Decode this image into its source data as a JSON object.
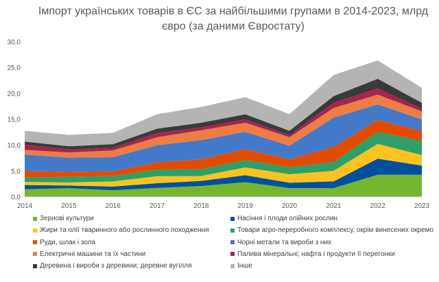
{
  "chart_data": {
    "type": "area",
    "stacked": true,
    "title": "Імпорт українських товарів в ЄС за найбільшими групами в 2014-2023, млрд євро (за даними Євростату)",
    "xlabel": "",
    "ylabel": "",
    "ylim": [
      0,
      30
    ],
    "yticks": [
      "0,0",
      "5,0",
      "10,0",
      "15,0",
      "20,0",
      "25,0",
      "30,0"
    ],
    "ytick_values": [
      0,
      5,
      10,
      15,
      20,
      25,
      30
    ],
    "categories": [
      "2014",
      "2015",
      "2016",
      "2017",
      "2018",
      "2019",
      "2020",
      "2021",
      "2022",
      "2023"
    ],
    "grid": false,
    "legend_position": "bottom",
    "series": [
      {
        "name": "Зернові культури",
        "color": "#74B72E",
        "values": [
          1.5,
          1.7,
          1.3,
          1.75,
          2.1,
          2.85,
          1.7,
          1.7,
          4.3,
          4.3
        ]
      },
      {
        "name": "Насіння і плоди олійних рослин",
        "color": "#00509E",
        "values": [
          0.8,
          0.5,
          0.7,
          0.9,
          1.0,
          1.35,
          1.05,
          1.3,
          3.1,
          1.75
        ]
      },
      {
        "name": "Жири та олії тваринного або рослинного походження",
        "color": "#FBC320",
        "values": [
          0.6,
          0.6,
          1.0,
          1.35,
          0.95,
          1.5,
          1.65,
          2.05,
          2.85,
          2.05
        ]
      },
      {
        "name": "Товари агро-переробного комплексу, окрім винесених окремо",
        "color": "#2E9F67",
        "values": [
          0.85,
          1.1,
          1.05,
          1.3,
          1.35,
          1.45,
          1.35,
          1.7,
          2.35,
          2.7
        ]
      },
      {
        "name": "Руди, шлак і зола",
        "color": "#E24C00",
        "values": [
          1.25,
          0.95,
          0.9,
          1.4,
          1.9,
          2.1,
          1.55,
          2.95,
          2.3,
          2.0
        ]
      },
      {
        "name": "Чорні метали та вироби з них",
        "color": "#4479C9",
        "values": [
          3.2,
          2.75,
          2.75,
          3.3,
          3.7,
          3.35,
          2.6,
          5.65,
          3.0,
          2.2
        ]
      },
      {
        "name": "Електричні машини та їх частини",
        "color": "#EE7D44",
        "values": [
          0.9,
          1.0,
          1.3,
          1.55,
          1.9,
          1.75,
          1.65,
          1.85,
          1.9,
          1.55
        ]
      },
      {
        "name": "Палива мінеральні; нафта і продукти її перегонки",
        "color": "#A8234F",
        "values": [
          1.0,
          0.6,
          0.5,
          0.8,
          0.55,
          0.65,
          0.35,
          1.0,
          1.2,
          0.45
        ]
      },
      {
        "name": "Деревина і вироби з деревини; деревне вугілля",
        "color": "#3A3A3A",
        "values": [
          0.6,
          0.6,
          0.7,
          0.85,
          0.9,
          1.0,
          0.9,
          1.3,
          1.85,
          1.2
        ]
      },
      {
        "name": "Інше",
        "color": "#B4B4B4",
        "values": [
          2.1,
          2.2,
          2.2,
          2.8,
          3.05,
          3.3,
          3.2,
          4.1,
          3.55,
          2.9
        ]
      }
    ]
  }
}
